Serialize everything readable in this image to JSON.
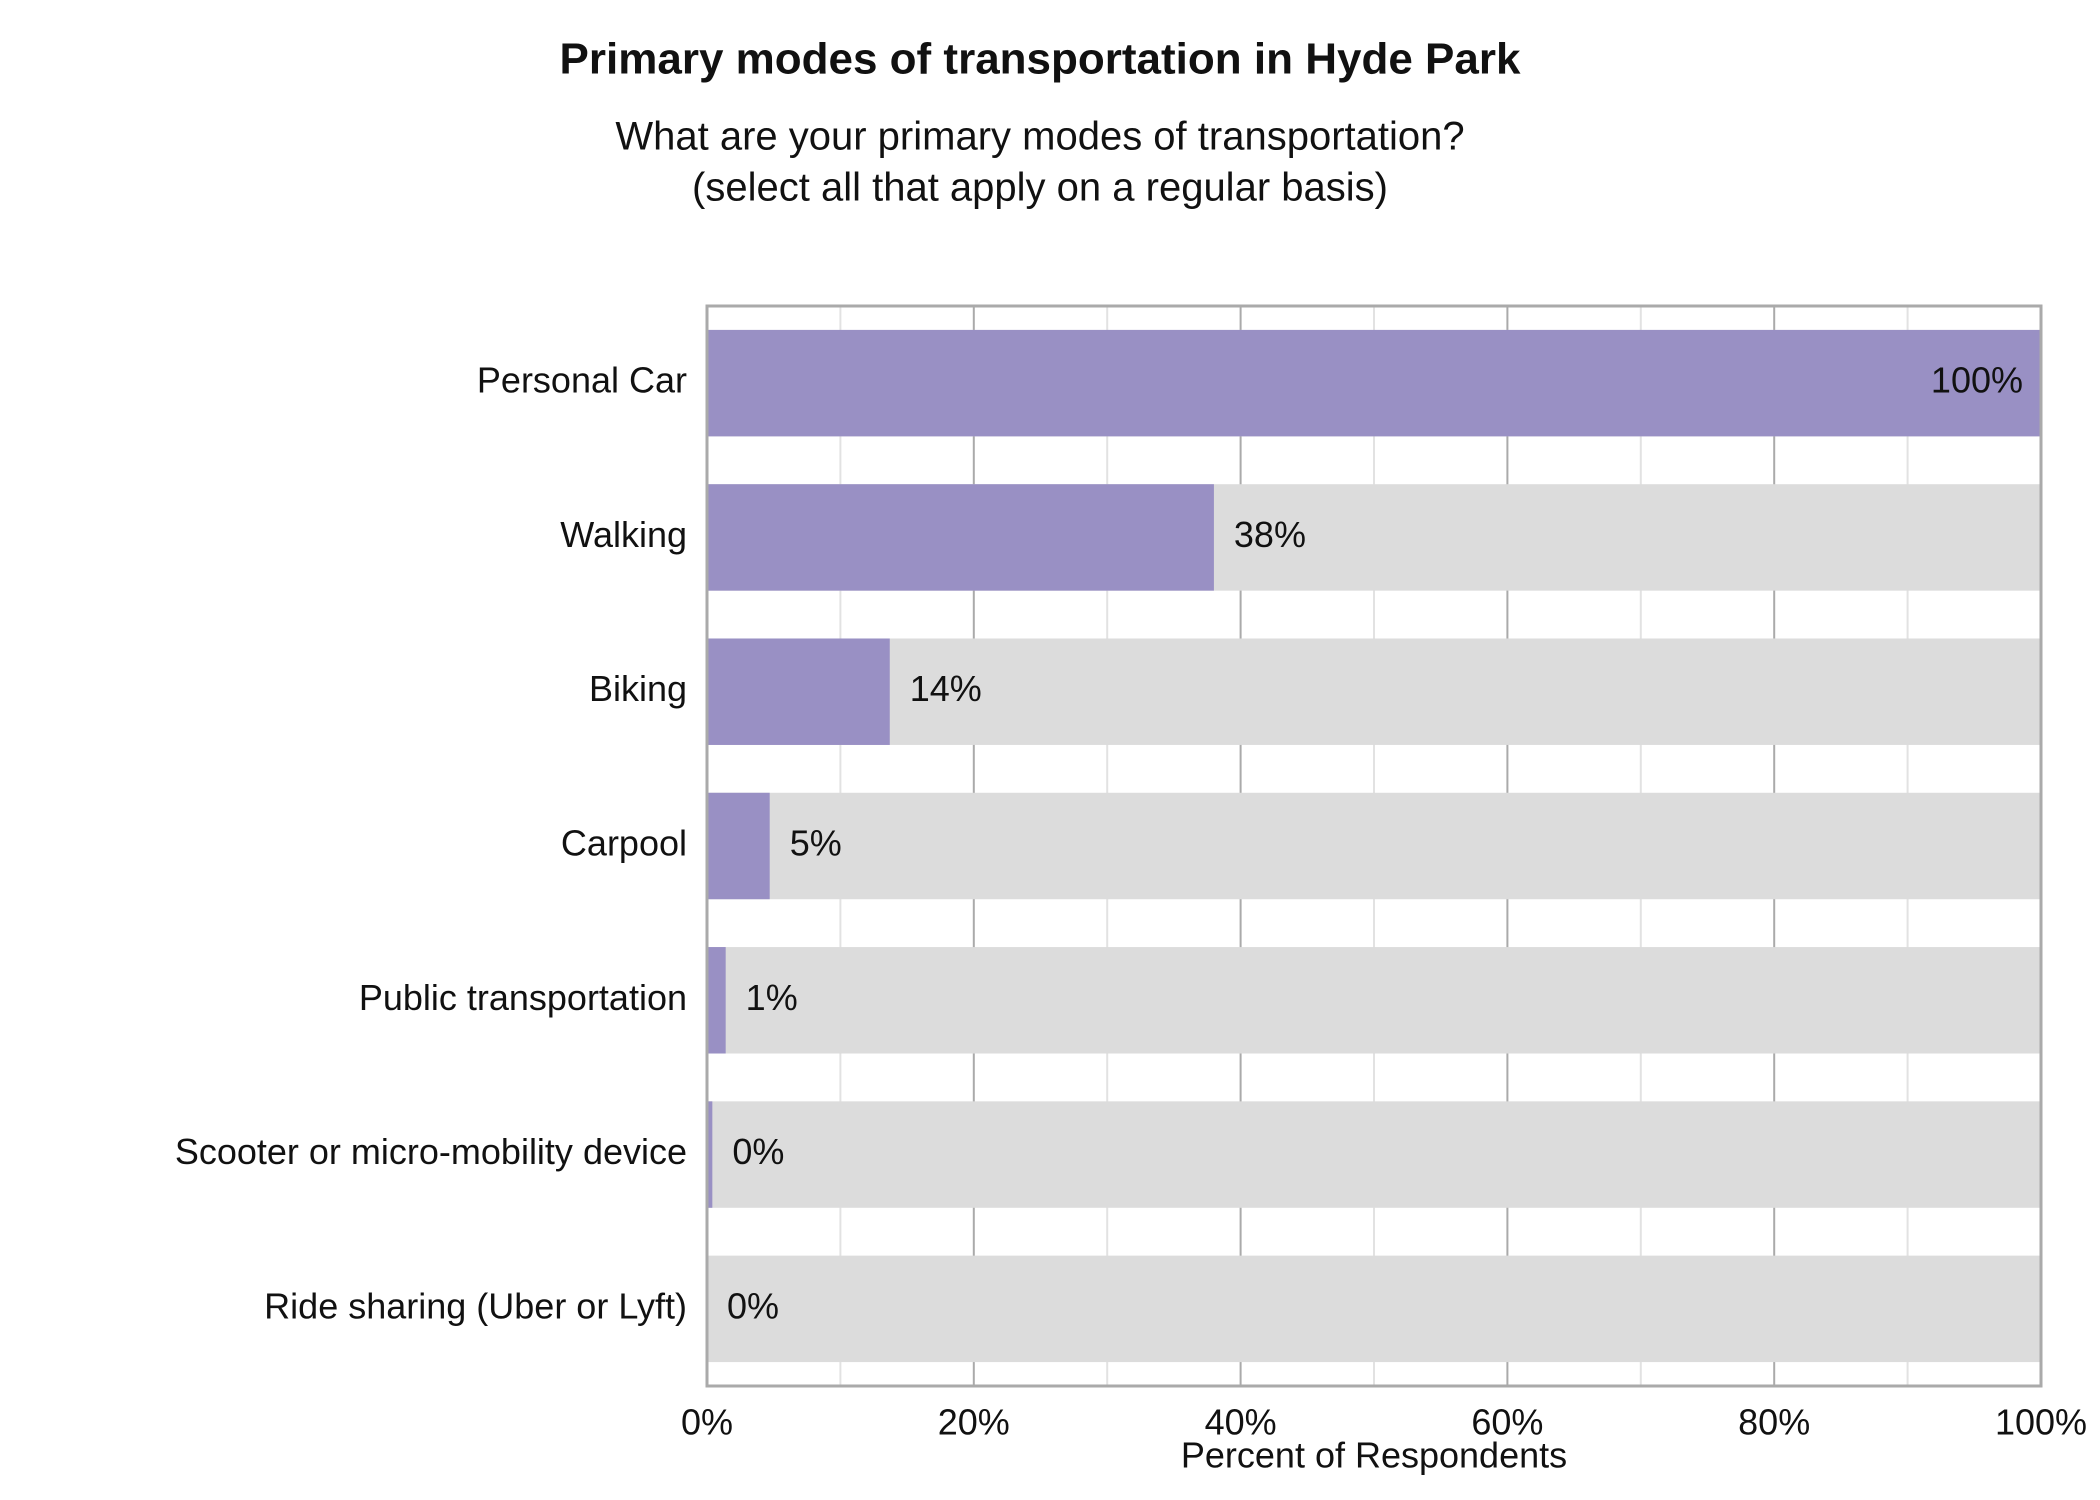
{
  "chart_data": {
    "type": "bar",
    "orientation": "horizontal",
    "title": "Primary modes of transportation in Hyde Park",
    "subtitle": [
      "What are your primary modes of transportation?",
      "(select all that apply on a regular basis)"
    ],
    "xlabel": "Percent of Respondents",
    "categories": [
      "Personal Car",
      "Walking",
      "Biking",
      "Carpool",
      "Public transportation",
      "Scooter or micro-mobility device",
      "Ride sharing (Uber or Lyft)"
    ],
    "values": [
      100,
      38,
      13.7,
      4.7,
      1.4,
      0.4,
      0
    ],
    "value_labels": [
      "100%",
      "38%",
      "14%",
      "5%",
      "1%",
      "0%",
      "0%"
    ],
    "color": "#9990c4",
    "track_color": "#dcdcdc",
    "xlim": [
      0,
      100
    ],
    "xticks": [
      {
        "value": 0,
        "label": "0%"
      },
      {
        "value": 20,
        "label": "20%"
      },
      {
        "value": 40,
        "label": "40%"
      },
      {
        "value": 60,
        "label": "60%"
      },
      {
        "value": 80,
        "label": "80%"
      },
      {
        "value": 100,
        "label": "100%"
      }
    ],
    "xminor": [
      10,
      30,
      50,
      70,
      90
    ],
    "grid": true
  }
}
